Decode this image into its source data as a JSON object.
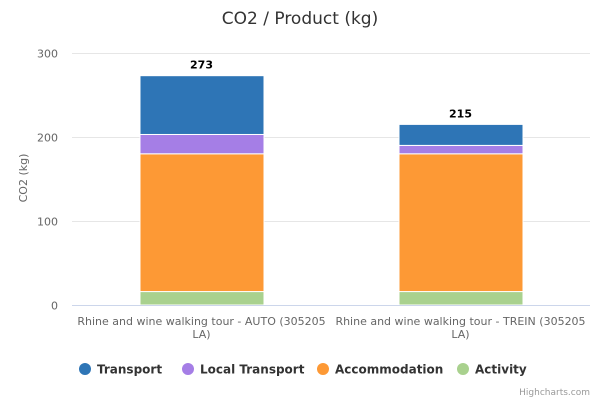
{
  "credits": "Highcharts.com",
  "chart_data": {
    "type": "bar",
    "stacked": true,
    "title": "CO2 / Product (kg)",
    "xlabel": "",
    "ylabel": "CO2 (kg)",
    "ylim": [
      0,
      300
    ],
    "yticks": [
      0,
      100,
      200,
      300
    ],
    "grid": true,
    "legend_position": "bottom",
    "categories": [
      [
        "Rhine and wine walking tour - AUTO (305205",
        "LA)"
      ],
      [
        "Rhine and wine walking tour - TREIN (305205",
        "LA)"
      ]
    ],
    "totals": [
      "273",
      "215"
    ],
    "series": [
      {
        "name": "Activity",
        "color": "#a9d18e",
        "values": [
          16,
          16
        ]
      },
      {
        "name": "Accommodation",
        "color": "#fd9935",
        "values": [
          164,
          164
        ]
      },
      {
        "name": "Local Transport",
        "color": "#a57ee6",
        "values": [
          23,
          10
        ]
      },
      {
        "name": "Transport",
        "color": "#2e75b6",
        "values": [
          70,
          25
        ]
      }
    ],
    "legend": [
      {
        "name": "Transport",
        "color": "#2e75b6"
      },
      {
        "name": "Local Transport",
        "color": "#a57ee6"
      },
      {
        "name": "Accommodation",
        "color": "#fd9935"
      },
      {
        "name": "Activity",
        "color": "#a9d18e"
      }
    ]
  }
}
